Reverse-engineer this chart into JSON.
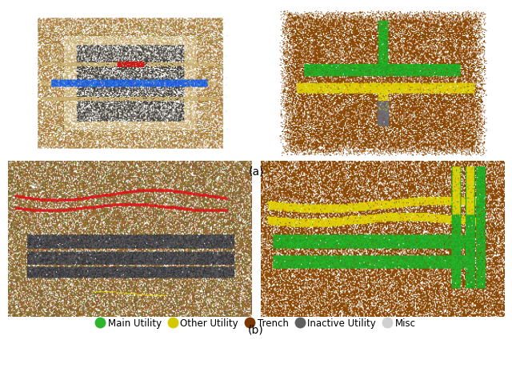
{
  "label_a": "(a)",
  "label_b": "(b)",
  "legend_items": [
    {
      "label": "Main Utility",
      "color": "#2db52d"
    },
    {
      "label": "Other Utility",
      "color": "#d4c800"
    },
    {
      "label": "Trench",
      "color": "#7a3800"
    },
    {
      "label": "Inactive Utility",
      "color": "#606060"
    },
    {
      "label": "Misc",
      "color": "#d0d0d0"
    }
  ],
  "label_fontsize": 10,
  "legend_fontsize": 8.5,
  "fig_width": 6.4,
  "fig_height": 4.8,
  "background_color": "#ffffff"
}
